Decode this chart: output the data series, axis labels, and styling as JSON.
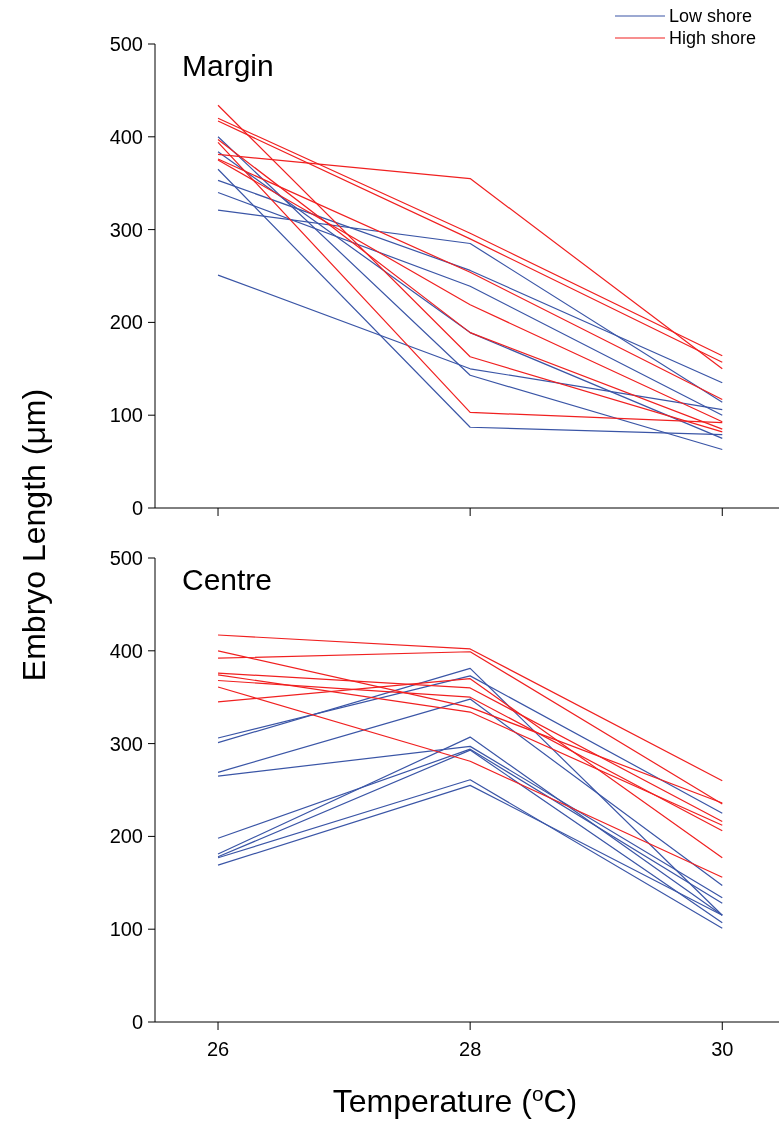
{
  "chart_data": [
    {
      "type": "line",
      "title": "Margin",
      "ylabel": "Embryo Length (μm)",
      "x": [
        26,
        28,
        30
      ],
      "xlim": [
        25.5,
        30.45
      ],
      "xticks": [
        26,
        28,
        30
      ],
      "ylim": [
        0,
        500
      ],
      "yticks": [
        0,
        100,
        200,
        300,
        400,
        500
      ],
      "tick_labels": "y",
      "legend": "top right",
      "grid": false,
      "marker": "none",
      "line_style": "solid",
      "series": [
        {
          "name": "Low shore",
          "color": "#3a55a6",
          "values": [
            321,
            285,
            114
          ]
        },
        {
          "color": "#3a55a6",
          "values": [
            340,
            239,
            100
          ]
        },
        {
          "color": "#3a55a6",
          "values": [
            353,
            256,
            135
          ]
        },
        {
          "color": "#3a55a6",
          "values": [
            365,
            87,
            79
          ]
        },
        {
          "color": "#3a55a6",
          "values": [
            384,
            189,
            75
          ]
        },
        {
          "color": "#3a55a6",
          "values": [
            400,
            143,
            63
          ]
        },
        {
          "color": "#3a55a6",
          "values": [
            251,
            150,
            106
          ]
        },
        {
          "name": "High shore",
          "color": "#f02020",
          "values": [
            434,
            163,
            82
          ]
        },
        {
          "color": "#f02020",
          "values": [
            420,
            296,
            164
          ]
        },
        {
          "color": "#f02020",
          "values": [
            417,
            290,
            157
          ]
        },
        {
          "color": "#f02020",
          "values": [
            394,
            103,
            92
          ]
        },
        {
          "color": "#f02020",
          "values": [
            381,
            355,
            150
          ]
        },
        {
          "color": "#f02020",
          "values": [
            376,
            254,
            117
          ]
        },
        {
          "color": "#f02020",
          "values": [
            375,
            219,
            93
          ]
        },
        {
          "color": "#f02020",
          "values": [
            397,
            189,
            85
          ]
        }
      ]
    },
    {
      "type": "line",
      "title": "Centre",
      "xlabel": "Temperature ($^{o}$C)",
      "x": [
        26,
        28,
        30
      ],
      "xlim": [
        25.5,
        30.45
      ],
      "xticks": [
        26,
        28,
        30
      ],
      "ylim": [
        0,
        500
      ],
      "yticks": [
        0,
        100,
        200,
        300,
        400,
        500
      ],
      "grid": false,
      "marker": "none",
      "line_style": "solid",
      "series": [
        {
          "color": "#3a55a6",
          "values": [
            306,
            373,
            225
          ]
        },
        {
          "color": "#3a55a6",
          "values": [
            301,
            381,
            115
          ]
        },
        {
          "color": "#3a55a6",
          "values": [
            269,
            348,
            147
          ]
        },
        {
          "color": "#3a55a6",
          "values": [
            265,
            297,
            134
          ]
        },
        {
          "color": "#3a55a6",
          "values": [
            198,
            294,
            128
          ]
        },
        {
          "color": "#3a55a6",
          "values": [
            181,
            307,
            115
          ]
        },
        {
          "color": "#3a55a6",
          "values": [
            178,
            293,
            107
          ]
        },
        {
          "color": "#3a55a6",
          "values": [
            177,
            261,
            101
          ]
        },
        {
          "color": "#3a55a6",
          "values": [
            169,
            255,
            115
          ]
        },
        {
          "color": "#f02020",
          "values": [
            417,
            402,
            260
          ]
        },
        {
          "color": "#f02020",
          "values": [
            400,
            339,
            236
          ]
        },
        {
          "color": "#f02020",
          "values": [
            392,
            399,
            235
          ]
        },
        {
          "color": "#f02020",
          "values": [
            376,
            360,
            216
          ]
        },
        {
          "color": "#f02020",
          "values": [
            374,
            334,
            212
          ]
        },
        {
          "color": "#f02020",
          "values": [
            368,
            350,
            206
          ]
        },
        {
          "color": "#f02020",
          "values": [
            361,
            281,
            156
          ]
        },
        {
          "color": "#f02020",
          "values": [
            345,
            370,
            177
          ]
        }
      ]
    }
  ]
}
